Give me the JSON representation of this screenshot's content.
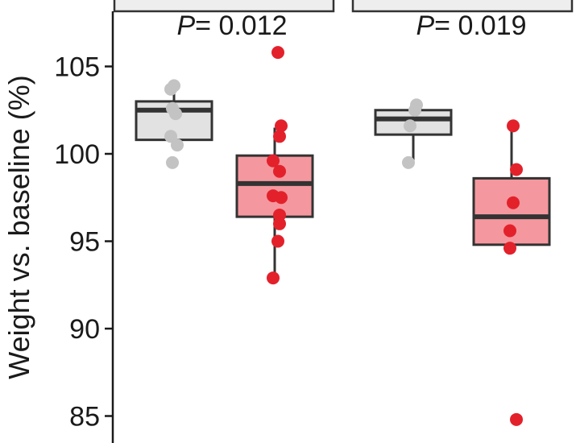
{
  "chart_data": {
    "type": "box",
    "ylabel": "Weight vs. baseline (%)",
    "yticks": [
      85,
      90,
      95,
      100,
      105
    ],
    "ylim": [
      83.8,
      108.5
    ],
    "grid": false,
    "colors": {
      "control_fill": "#e2e2e2",
      "control_points": "#c3c3c3",
      "treated_fill": "#f5979e",
      "treated_points": "#e3212b",
      "box_stroke": "#333333",
      "strip_fill": "#eeeeee"
    },
    "panels": [
      {
        "p_label": "P",
        "p_value": "= 0.012",
        "groups": [
          {
            "role": "control",
            "box": {
              "whisker_low": 100.6,
              "q1": 100.8,
              "median": 102.5,
              "q3": 103.0,
              "whisker_high": 103.7
            },
            "points": [
              103.9,
              103.7,
              102.6,
              102.3,
              101.0,
              100.5,
              99.5
            ]
          },
          {
            "role": "treated",
            "box": {
              "whisker_low": 92.8,
              "q1": 96.4,
              "median": 98.3,
              "q3": 99.9,
              "whisker_high": 101.5
            },
            "points": [
              105.8,
              101.6,
              101.0,
              99.6,
              99.0,
              97.6,
              97.5,
              96.5,
              96.0,
              95.0,
              92.9
            ]
          }
        ]
      },
      {
        "p_label": "P",
        "p_value": "= 0.019",
        "groups": [
          {
            "role": "control",
            "box": {
              "whisker_low": 99.5,
              "q1": 101.1,
              "median": 102.0,
              "q3": 102.5,
              "whisker_high": 102.5
            },
            "points": [
              102.8,
              102.5,
              101.6,
              99.5
            ]
          },
          {
            "role": "treated",
            "box": {
              "whisker_low": 94.8,
              "q1": 94.8,
              "median": 96.4,
              "q3": 98.6,
              "whisker_high": 101.5
            },
            "points": [
              101.6,
              99.1,
              97.2,
              95.6,
              94.6,
              84.8
            ]
          }
        ]
      }
    ]
  }
}
